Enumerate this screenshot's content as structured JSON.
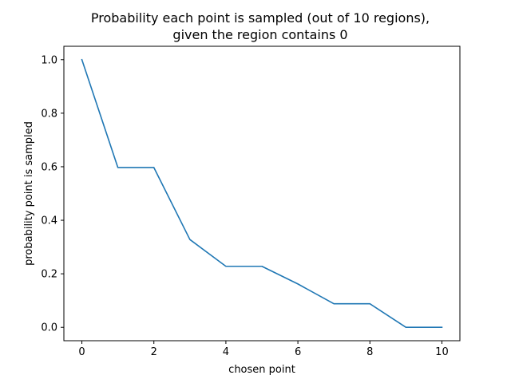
{
  "chart_data": {
    "type": "line",
    "title": [
      "Probability each point is sampled (out of 10 regions),",
      "given the region contains 0"
    ],
    "xlabel": "chosen point",
    "ylabel": "probability point is sampled",
    "x": [
      0,
      1,
      2,
      3,
      4,
      5,
      6,
      7,
      8,
      9,
      10
    ],
    "series": [
      {
        "name": "",
        "color": "#1f77b4",
        "values": [
          1.0,
          0.597,
          0.597,
          0.328,
          0.228,
          0.228,
          0.162,
          0.088,
          0.088,
          0.0,
          0.0
        ]
      }
    ],
    "xlim": [
      -0.5,
      10.5
    ],
    "ylim": [
      -0.05,
      1.05
    ],
    "xticks": [
      0,
      2,
      4,
      6,
      8,
      10
    ],
    "yticks": [
      0.0,
      0.2,
      0.4,
      0.6,
      0.8,
      1.0
    ],
    "ytick_labels": [
      "0.0",
      "0.2",
      "0.4",
      "0.6",
      "0.8",
      "1.0"
    ],
    "grid": false,
    "legend": "none"
  }
}
